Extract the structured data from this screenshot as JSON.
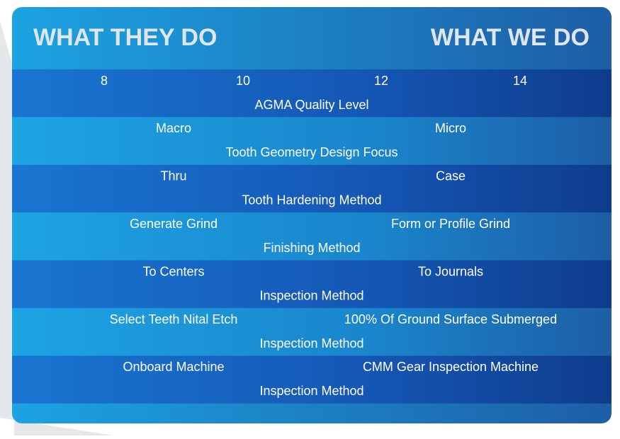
{
  "header": {
    "left": "WHAT THEY DO",
    "right": "WHAT WE DO"
  },
  "rows": [
    {
      "labels": [
        "8",
        "10",
        "12",
        "14"
      ],
      "caption": "AGMA Quality Level"
    },
    {
      "labels": [
        "Macro",
        "Micro"
      ],
      "caption": "Tooth Geometry Design Focus"
    },
    {
      "labels": [
        "Thru",
        "Case"
      ],
      "caption": "Tooth Hardening Method"
    },
    {
      "labels": [
        "Generate Grind",
        "Form or Profile Grind"
      ],
      "caption": "Finishing Method"
    },
    {
      "labels": [
        "To Centers",
        "To Journals"
      ],
      "caption": "Inspection Method"
    },
    {
      "labels": [
        "Select Teeth Nital Etch",
        "100% Of Ground Surface Submerged"
      ],
      "caption": "Inspection Method"
    },
    {
      "labels": [
        "Onboard Machine",
        "CMM Gear Inspection Machine"
      ],
      "caption": "Inspection Method"
    }
  ]
}
